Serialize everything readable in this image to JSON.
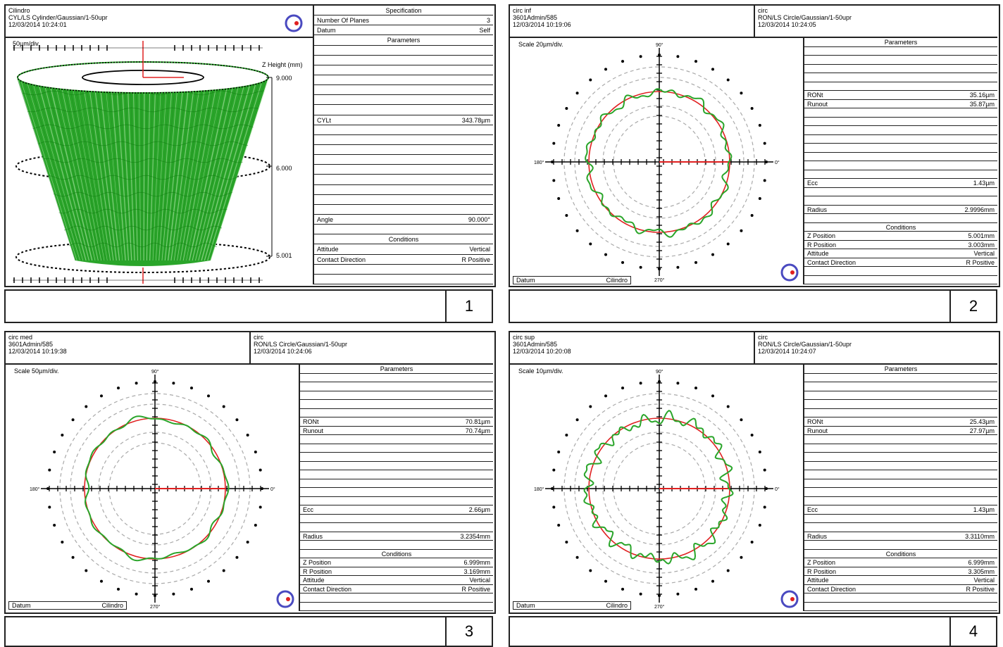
{
  "panels": {
    "p1": {
      "title": "Cilindro",
      "line2": "CYL/LS Cylinder/Gaussian/1-50upr",
      "line3": "12/03/2014 10:24:01",
      "scale": "50µm/div.",
      "zlabel": "Z Height (mm)",
      "z_top": "9.000",
      "z_mid": "6.000",
      "z_bot": "5.001",
      "number": "1",
      "rows": [
        {
          "type": "sec",
          "label": "Specification"
        },
        {
          "label": "Number Of Planes",
          "value": "3"
        },
        {
          "label": "Datum",
          "value": "Self"
        },
        {
          "type": "sec",
          "label": "Parameters"
        },
        {},
        {},
        {},
        {},
        {},
        {},
        {},
        {
          "label": "CYLt",
          "value": "343.78µm"
        },
        {},
        {},
        {},
        {},
        {},
        {},
        {},
        {},
        {},
        {
          "label": "Angle",
          "value": "90.000°"
        },
        {},
        {
          "type": "sec",
          "label": "Conditions"
        },
        {
          "label": "Attitude",
          "value": "Vertical"
        },
        {
          "label": "Contact Direction",
          "value": "R Positive"
        },
        {},
        {}
      ]
    },
    "p2": {
      "h1_line1": "circ inf",
      "h1_line2": "3601Admin/585",
      "h1_line3": "12/03/2014 10:19:06",
      "h2_line1": "circ",
      "h2_line2": "RON/LS Circle/Gaussian/1-50upr",
      "h2_line3": "12/03/2014 10:24:05",
      "scale": "Scale 20µm/div.",
      "datum_label": "Datum",
      "datum_value": "Cilindro",
      "number": "2",
      "rows": [
        {
          "type": "sec",
          "label": "Parameters"
        },
        {},
        {},
        {},
        {},
        {},
        {
          "label": "RONt",
          "value": "35.16µm"
        },
        {
          "label": "Runout",
          "value": "35.87µm"
        },
        {},
        {},
        {},
        {},
        {},
        {},
        {},
        {},
        {
          "label": "Ecc",
          "value": "1.43µm"
        },
        {},
        {},
        {
          "label": "Radius",
          "value": "2.9996mm"
        },
        {},
        {
          "type": "sec",
          "label": "Conditions"
        },
        {
          "label": "Z Position",
          "value": "5.001mm"
        },
        {
          "label": "R Position",
          "value": "3.003mm"
        },
        {
          "label": "Attitude",
          "value": "Vertical"
        },
        {
          "label": "Contact Direction",
          "value": "R Positive"
        },
        {},
        {}
      ]
    },
    "p3": {
      "h1_line1": "circ med",
      "h1_line2": "3601Admin/585",
      "h1_line3": "12/03/2014 10:19:38",
      "h2_line1": "circ",
      "h2_line2": "RON/LS Circle/Gaussian/1-50upr",
      "h2_line3": "12/03/2014 10:24:06",
      "scale": "Scale 50µm/div.",
      "datum_label": "Datum",
      "datum_value": "Cilindro",
      "number": "3",
      "rows": [
        {
          "type": "sec",
          "label": "Parameters"
        },
        {},
        {},
        {},
        {},
        {},
        {
          "label": "RONt",
          "value": "70.81µm"
        },
        {
          "label": "Runout",
          "value": "70.74µm"
        },
        {},
        {},
        {},
        {},
        {},
        {},
        {},
        {},
        {
          "label": "Ecc",
          "value": "2.66µm"
        },
        {},
        {},
        {
          "label": "Radius",
          "value": "3.2354mm"
        },
        {},
        {
          "type": "sec",
          "label": "Conditions"
        },
        {
          "label": "Z Position",
          "value": "6.999mm"
        },
        {
          "label": "R Position",
          "value": "3.169mm"
        },
        {
          "label": "Attitude",
          "value": "Vertical"
        },
        {
          "label": "Contact Direction",
          "value": "R Positive"
        },
        {},
        {}
      ]
    },
    "p4": {
      "h1_line1": "circ sup",
      "h1_line2": "3601Admin/585",
      "h1_line3": "12/03/2014 10:20:08",
      "h2_line1": "circ",
      "h2_line2": "RON/LS Circle/Gaussian/1-50upr",
      "h2_line3": "12/03/2014 10:24:07",
      "scale": "Scale 10µm/div.",
      "datum_label": "Datum",
      "datum_value": "Cilindro",
      "number": "4",
      "rows": [
        {
          "type": "sec",
          "label": "Parameters"
        },
        {},
        {},
        {},
        {},
        {},
        {
          "label": "RONt",
          "value": "25.43µm"
        },
        {
          "label": "Runout",
          "value": "27.97µm"
        },
        {},
        {},
        {},
        {},
        {},
        {},
        {},
        {},
        {
          "label": "Ecc",
          "value": "1.43µm"
        },
        {},
        {},
        {
          "label": "Radius",
          "value": "3.3110mm"
        },
        {},
        {
          "type": "sec",
          "label": "Conditions"
        },
        {
          "label": "Z Position",
          "value": "6.999mm"
        },
        {
          "label": "R Position",
          "value": "3.305mm"
        },
        {
          "label": "Attitude",
          "value": "Vertical"
        },
        {
          "label": "Contact Direction",
          "value": "R Positive"
        },
        {},
        {}
      ]
    }
  },
  "polar_axis_labels": {
    "top": "90°",
    "bottom": "270°",
    "left": "180°",
    "right": "0°"
  },
  "colors": {
    "profile": "#2aa52a",
    "reference": "#e02020",
    "axis": "#000000",
    "grid": "#aaaaaa",
    "logo": "#4a4ac0",
    "logo_dot": "#e02020"
  },
  "icons": [
    "logo-icon"
  ]
}
